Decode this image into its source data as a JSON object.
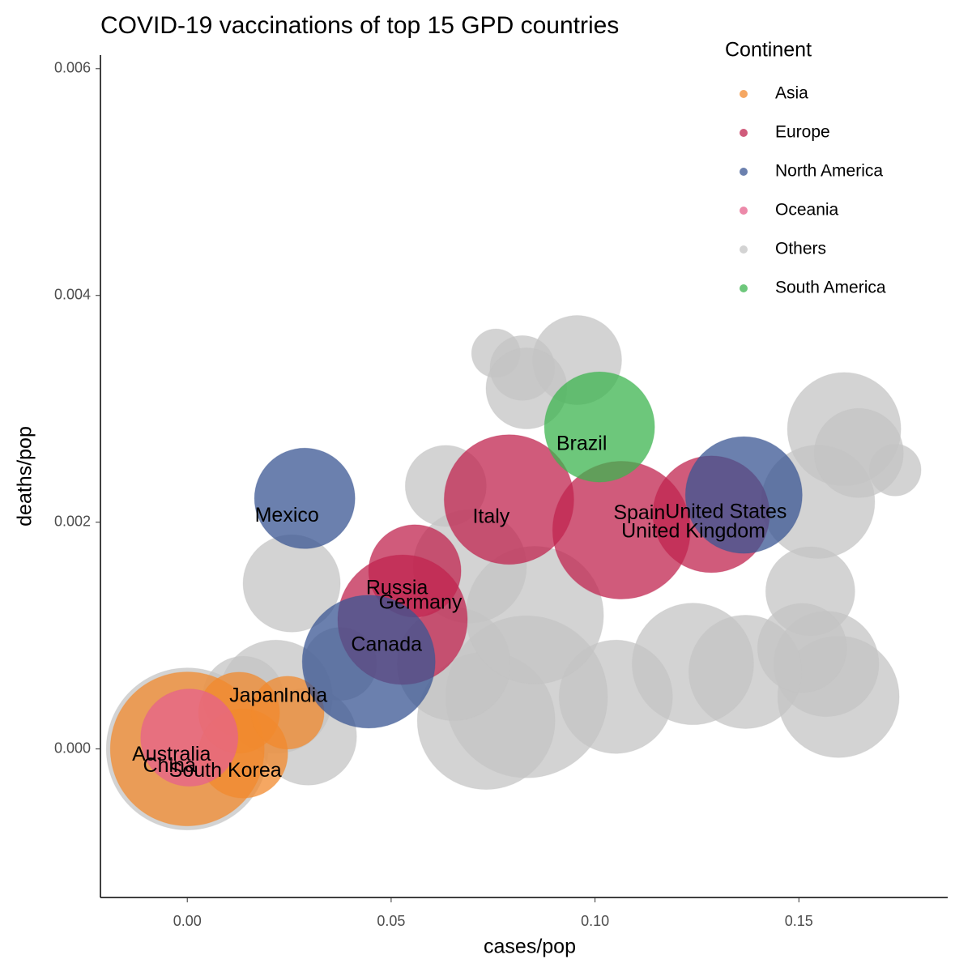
{
  "chart_data": {
    "type": "bubble",
    "title": "COVID-19 vaccinations of top 15 GPD countries",
    "x_label": "cases/pop",
    "y_label": "deaths/pop",
    "legend_title": "Continent",
    "legend": "top-right",
    "xlim": [
      -0.0213,
      0.1865
    ],
    "ylim": [
      -0.00131,
      0.00612
    ],
    "xticks": [
      {
        "value": 0,
        "label": "0.00"
      },
      0.05,
      {
        "value": 0.1,
        "label": "0.10"
      },
      0.15
    ],
    "yticks": [
      {
        "value": 0,
        "label": "0.000"
      },
      0.002,
      0.004,
      0.006
    ],
    "series": [
      {
        "name": "Others",
        "color": "#c4c4c4",
        "x": [
          0,
          0.0757,
          0.0822,
          0.0956,
          0.0832,
          0.1611,
          0.1736,
          0.1547,
          0.1528,
          0.1567,
          0.1597,
          0.1369,
          0.1508,
          0.124,
          0.1051,
          0.0832,
          0.0733,
          0.0654,
          0.0693,
          0.0634,
          0.0852,
          0.0256,
          0.0217,
          0.0137,
          0.0296,
          0.0375,
          0.1647
        ],
        "y": [
          0,
          0.00349,
          0.00336,
          0.00343,
          0.00318,
          0.00282,
          0.00246,
          0.00218,
          0.00139,
          0.00075,
          0.00046,
          0.00068,
          0.00089,
          0.00075,
          0.00046,
          0.00046,
          0.00025,
          0.00075,
          0.00161,
          0.00232,
          0.00118,
          0.00146,
          0.00046,
          0.00046,
          0.00011,
          0.00075,
          0.00261
        ],
        "sizes": [
          100,
          30,
          40,
          55,
          50,
          70,
          32,
          70,
          55,
          65,
          75,
          70,
          55,
          75,
          70,
          100,
          85,
          70,
          70,
          50,
          85,
          60,
          70,
          50,
          60,
          45,
          55
        ]
      },
      {
        "name": "Asia",
        "color": "#f28a2e",
        "x": [
          0,
          0.0127,
          0.0137,
          0.0246
        ],
        "y": [
          0,
          0.00032,
          -4e-05,
          0.00032
        ],
        "sizes": [
          95,
          50,
          55,
          45
        ],
        "labels": [
          "China",
          "Japan",
          "South Korea",
          "India"
        ]
      },
      {
        "name": "Europe",
        "color": "#c0244f",
        "x": [
          0.0558,
          0.0528,
          0.0789,
          0.1065,
          0.1285
        ],
        "y": [
          0.00157,
          0.00114,
          0.0022,
          0.00193,
          0.00207
        ],
        "sizes": [
          57,
          80,
          80,
          85,
          72
        ],
        "labels": [
          "Russia",
          "Germany",
          "Italy",
          "Spain",
          "United Kingdom"
        ]
      },
      {
        "name": "North America",
        "color": "#3a5593",
        "x": [
          0.0288,
          0.0445,
          0.1365
        ],
        "y": [
          0.00221,
          0.00077,
          0.00224
        ],
        "sizes": [
          62,
          82,
          72
        ],
        "labels": [
          "Mexico",
          "Canada",
          "United States"
        ]
      },
      {
        "name": "Oceania",
        "color": "#e6628c",
        "x": [
          0.0005
        ],
        "y": [
          0.0001
        ],
        "sizes": [
          60
        ],
        "labels": [
          "Australia"
        ]
      },
      {
        "name": "South America",
        "color": "#3cb44f",
        "x": [
          0.1011
        ],
        "y": [
          0.00284
        ],
        "sizes": [
          68
        ],
        "labels": [
          "Brazil"
        ]
      }
    ]
  }
}
